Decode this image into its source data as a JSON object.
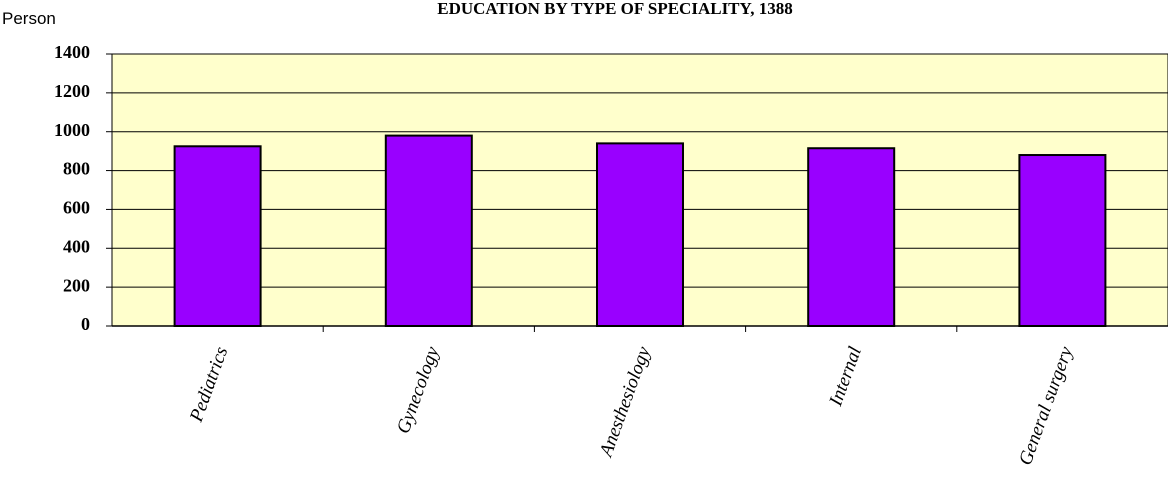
{
  "chart_data": {
    "type": "bar",
    "title": "EDUCATION BY TYPE OF SPECIALITY, 1388",
    "y_label": "Person",
    "categories": [
      "Pediatrics",
      "Gynecology",
      "Anesthesiology",
      "Internal",
      "General surgery"
    ],
    "values": [
      925,
      980,
      940,
      915,
      880
    ],
    "color": "#9900ff",
    "background": "#ffffcc",
    "ylim": [
      0,
      1400
    ],
    "yticks": [
      0,
      200,
      400,
      600,
      800,
      1000,
      1200,
      1400
    ],
    "grid": true
  }
}
